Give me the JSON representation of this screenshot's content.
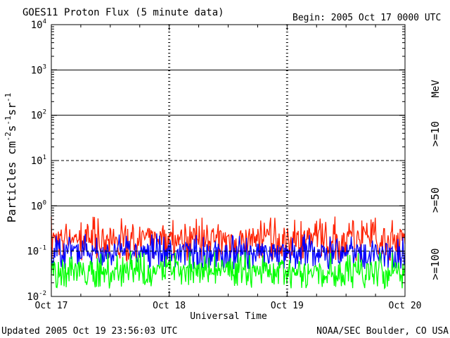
{
  "chart_data": {
    "type": "line",
    "title": "GOES11 Proton Flux (5 minute data)",
    "begin_label": "Begin: 2005 Oct 17 0000 UTC",
    "xlabel": "Universal Time",
    "ylabel_main": "Particles cm",
    "ylabel_sup1": "-2",
    "ylabel_mid1": "s",
    "ylabel_sup2": "-1",
    "ylabel_mid2": "sr",
    "ylabel_sup3": "-1",
    "y_scale": "log",
    "ylim": [
      0.01,
      10000
    ],
    "y_ticks": [
      {
        "base": "10",
        "exp": "-2",
        "value": 0.01
      },
      {
        "base": "10",
        "exp": "-1",
        "value": 0.1
      },
      {
        "base": "10",
        "exp": "0",
        "value": 1
      },
      {
        "base": "10",
        "exp": "1",
        "value": 10
      },
      {
        "base": "10",
        "exp": "2",
        "value": 100
      },
      {
        "base": "10",
        "exp": "3",
        "value": 1000
      },
      {
        "base": "10",
        "exp": "4",
        "value": 10000
      }
    ],
    "x_ticks": [
      "Oct 17",
      "Oct 18",
      "Oct 19",
      "Oct 20"
    ],
    "x_range_days": [
      0,
      3
    ],
    "grid": "solid lines at 10^0, 10^2, 10^3 and dashed lines at 10^-1, 10^1; dashed vertical markers at day boundaries",
    "units_label": "MeV",
    "series": [
      {
        "name": ">=10",
        "color": "#ff2000",
        "typical_value": 0.2,
        "peak_value": 0.6,
        "low_value": 0.06
      },
      {
        "name": ">=50",
        "color": "#0000ff",
        "typical_value": 0.1,
        "peak_value": 0.25,
        "low_value": 0.04
      },
      {
        "name": ">=100",
        "color": "#00ff00",
        "typical_value": 0.04,
        "peak_value": 0.1,
        "low_value": 0.015
      }
    ]
  },
  "footer": {
    "updated": "Updated 2005 Oct 19 23:56:03 UTC",
    "credit": "NOAA/SEC Boulder, CO USA"
  }
}
